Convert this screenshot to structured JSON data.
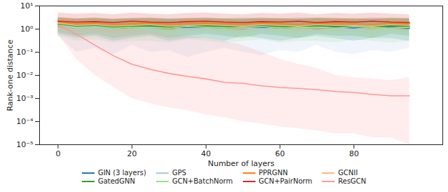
{
  "chart_data": {
    "type": "line",
    "x_label": "Number of layers",
    "y_label": "Rank-one distance",
    "log": "y",
    "grid": false,
    "legend": "bottom",
    "xlim": [
      -5,
      104
    ],
    "xticks": [
      0,
      20,
      40,
      60,
      80
    ],
    "ylim": [
      1e-05,
      10
    ],
    "yticks": [
      {
        "value": 1e-05,
        "label": "10⁻⁵"
      },
      {
        "value": 0.0001,
        "label": "10⁻⁴"
      },
      {
        "value": 0.001,
        "label": "10⁻³"
      },
      {
        "value": 0.01,
        "label": "10⁻²"
      },
      {
        "value": 0.1,
        "label": "10⁻¹"
      },
      {
        "value": 1,
        "label": "10⁰"
      },
      {
        "value": 10,
        "label": "10¹"
      }
    ],
    "x": [
      0,
      5,
      10,
      15,
      20,
      25,
      30,
      35,
      40,
      45,
      50,
      55,
      60,
      65,
      70,
      75,
      80,
      85,
      90,
      95
    ],
    "series": [
      {
        "name": "GIN (3 layers)",
        "color": "#1f77b4",
        "values": [
          1.5,
          1.2,
          1.3,
          1.1,
          1.2,
          1.3,
          1.1,
          1.2,
          1.2,
          1.1,
          1.3,
          1.2,
          1.1,
          1.2,
          1.3,
          1.2,
          1.1,
          1.2,
          1.2,
          1.1
        ],
        "lower": [
          0.6,
          0.4,
          0.5,
          0.3,
          0.4,
          0.5,
          0.3,
          0.4,
          0.4,
          0.3,
          0.5,
          0.4,
          0.3,
          0.4,
          0.5,
          0.4,
          0.3,
          0.4,
          0.4,
          0.3
        ],
        "upper": [
          3,
          2.8,
          3,
          2.7,
          2.9,
          3,
          2.8,
          2.9,
          3,
          2.8,
          3,
          2.9,
          2.8,
          3,
          3,
          2.9,
          2.8,
          3,
          2.9,
          2.8
        ]
      },
      {
        "name": "GPS",
        "color": "#aec7e8",
        "values": [
          1.4,
          1.1,
          1.2,
          1.0,
          1.3,
          1.1,
          1.2,
          1.0,
          1.1,
          1.2,
          1.1,
          1.0,
          1.2,
          1.1,
          1.3,
          1.1,
          1.0,
          1.2,
          1.1,
          1.2
        ],
        "lower": [
          0.5,
          0.1,
          0.15,
          0.08,
          0.2,
          0.1,
          0.12,
          0.06,
          0.1,
          0.15,
          0.1,
          0.07,
          0.12,
          0.1,
          0.2,
          0.1,
          0.08,
          0.12,
          0.1,
          0.15
        ],
        "upper": [
          3,
          2.5,
          2.7,
          2.4,
          2.8,
          2.6,
          2.7,
          2.4,
          2.6,
          2.7,
          2.6,
          2.4,
          2.7,
          2.6,
          2.8,
          2.6,
          2.4,
          2.7,
          2.6,
          2.7
        ]
      },
      {
        "name": "PPRGNN",
        "color": "#ff7f0e",
        "values": [
          2,
          1.7,
          1.8,
          1.6,
          1.7,
          1.8,
          1.6,
          1.7,
          1.8,
          1.7,
          1.6,
          1.8,
          1.7,
          1.6,
          1.8,
          1.7,
          1.7,
          1.6,
          1.8,
          1.7
        ],
        "lower": [
          1.2,
          1,
          1.1,
          0.9,
          1,
          1.1,
          0.9,
          1,
          1.1,
          1,
          0.9,
          1.1,
          1,
          0.9,
          1.1,
          1,
          1,
          0.9,
          1.1,
          1
        ],
        "upper": [
          3.2,
          2.8,
          3,
          2.7,
          2.9,
          3,
          2.7,
          2.9,
          3,
          2.8,
          2.7,
          3,
          2.9,
          2.7,
          3,
          2.9,
          2.8,
          2.7,
          3,
          2.9
        ]
      },
      {
        "name": "GCNII",
        "color": "#ffbb78",
        "values": [
          1.8,
          1.4,
          1.5,
          1.3,
          1.4,
          1.5,
          1.3,
          1.4,
          1.5,
          1.4,
          1.3,
          1.5,
          1.4,
          1.3,
          1.5,
          1.4,
          1.4,
          1.3,
          1.5,
          1.4
        ],
        "lower": [
          0.9,
          0.7,
          0.8,
          0.6,
          0.7,
          0.8,
          0.6,
          0.7,
          0.8,
          0.7,
          0.6,
          0.8,
          0.7,
          0.6,
          0.8,
          0.7,
          0.7,
          0.6,
          0.8,
          0.7
        ],
        "upper": [
          3.1,
          2.7,
          2.9,
          2.6,
          2.8,
          2.9,
          2.6,
          2.8,
          2.9,
          2.7,
          2.6,
          2.9,
          2.8,
          2.6,
          2.9,
          2.8,
          2.7,
          2.6,
          2.9,
          2.8
        ]
      },
      {
        "name": "GatedGNN",
        "color": "#2ca02c",
        "values": [
          1.6,
          1.3,
          1.4,
          1.2,
          1.3,
          1.4,
          1.2,
          1.3,
          1.4,
          1.3,
          1.2,
          1.4,
          1.3,
          1.2,
          1.4,
          1.3,
          1.3,
          1.2,
          1.4,
          1.3
        ],
        "lower": [
          0.7,
          0.5,
          0.6,
          0.4,
          0.5,
          0.6,
          0.4,
          0.5,
          0.6,
          0.5,
          0.4,
          0.6,
          0.5,
          0.4,
          0.6,
          0.5,
          0.5,
          0.4,
          0.6,
          0.5
        ],
        "upper": [
          3,
          2.7,
          2.9,
          2.6,
          2.8,
          2.9,
          2.6,
          2.8,
          2.9,
          2.7,
          2.6,
          2.9,
          2.8,
          2.6,
          2.9,
          2.8,
          2.7,
          2.6,
          2.9,
          2.8
        ]
      },
      {
        "name": "GCN+BatchNorm",
        "color": "#98df8a",
        "values": [
          1.5,
          1.2,
          1.3,
          1.1,
          1.2,
          1.2,
          1.1,
          1.3,
          1.2,
          1.1,
          1.2,
          1.3,
          1.1,
          1.2,
          1.2,
          1.1,
          1.3,
          1.2,
          1.1,
          1.2
        ],
        "lower": [
          0.5,
          0.3,
          0.35,
          0.25,
          0.3,
          0.3,
          0.25,
          0.35,
          0.3,
          0.25,
          0.3,
          0.35,
          0.25,
          0.3,
          0.3,
          0.25,
          0.35,
          0.3,
          0.25,
          0.3
        ],
        "upper": [
          3,
          2.8,
          2.9,
          2.7,
          2.8,
          2.8,
          2.7,
          2.9,
          2.8,
          2.7,
          2.8,
          2.9,
          2.7,
          2.8,
          2.8,
          2.7,
          2.9,
          2.8,
          2.7,
          2.8
        ]
      },
      {
        "name": "GCN+PairNorm",
        "color": "#d62728",
        "values": [
          2.2,
          2,
          2.1,
          1.9,
          2.2,
          2,
          1.9,
          2.1,
          2.2,
          2,
          1.9,
          2.1,
          2,
          2.2,
          1.9,
          2.1,
          2,
          2.2,
          2,
          1.9
        ],
        "lower": [
          1.2,
          1,
          1.1,
          0.9,
          1.2,
          1,
          0.9,
          1.1,
          1.2,
          1,
          0.9,
          1.1,
          1,
          1.2,
          0.9,
          1.1,
          1,
          1.2,
          1,
          0.9
        ],
        "upper": [
          5,
          4.5,
          4.8,
          4.2,
          5,
          4.5,
          4.2,
          4.8,
          5,
          4.5,
          4.2,
          4.8,
          4.5,
          5,
          4.2,
          4.8,
          4.5,
          5,
          4.5,
          4.2
        ]
      },
      {
        "name": "ResGCN",
        "color": "#ff9896",
        "values": [
          1.5,
          0.6,
          0.2,
          0.07,
          0.03,
          0.018,
          0.012,
          0.009,
          0.007,
          0.005,
          0.0045,
          0.0035,
          0.003,
          0.0027,
          0.0024,
          0.002,
          0.0018,
          0.0015,
          0.0013,
          0.0013
        ],
        "lower": [
          0.6,
          0.05,
          0.01,
          0.003,
          0.001,
          0.0006,
          0.0004,
          0.0003,
          0.0002,
          0.00015,
          0.0001,
          8e-05,
          6e-05,
          5e-05,
          4e-05,
          3e-05,
          3e-05,
          2e-05,
          2e-05,
          1e-05
        ],
        "upper": [
          3,
          2.5,
          2,
          1.5,
          1,
          0.8,
          0.6,
          0.5,
          0.4,
          0.3,
          0.2,
          0.1,
          0.05,
          0.03,
          0.02,
          0.01,
          0.008,
          0.007,
          0.006,
          0.008
        ]
      }
    ]
  }
}
